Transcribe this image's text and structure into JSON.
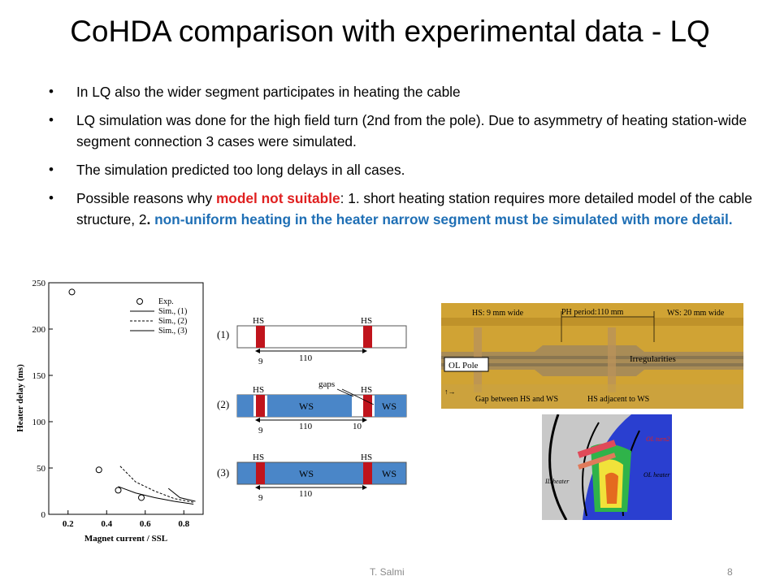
{
  "slide": {
    "title": "CoHDA comparison with experimental data - LQ",
    "bullets": {
      "b1": "In LQ also the wider segment participates in heating the cable",
      "b2": "LQ simulation was done for the high field turn (2nd from the pole). Due to asymmetry of heating station-wide segment connection 3 cases were simulated.",
      "b3": "The simulation predicted too long delays in all cases.",
      "b4_pre": "Possible reasons why ",
      "b4_red": "model not suitable",
      "b4_mid": ": 1. short heating station requires more detailed model of the cable structure, 2",
      "b4_dot": ". ",
      "b4_blue": "non-uniform heating in the heater narrow segment must be simulated with more detail."
    },
    "footer": {
      "author": "T. Salmi",
      "page": "8"
    }
  },
  "plot": {
    "ylabel": "Heater delay (ms)",
    "xlabel": "Magnet current / SSL",
    "yticks": [
      "0",
      "50",
      "100",
      "150",
      "200",
      "250"
    ],
    "xticks": [
      "0.2",
      "0.4",
      "0.6",
      "0.8"
    ],
    "legend": [
      "Exp.",
      "Sim., (1)",
      "Sim., (2)",
      "Sim., (3)"
    ]
  },
  "chart_data": {
    "type": "scatter",
    "xlabel": "Magnet current / SSL",
    "ylabel": "Heater delay (ms)",
    "xlim": [
      0.1,
      0.9
    ],
    "ylim": [
      0,
      250
    ],
    "series": [
      {
        "name": "Exp.",
        "style": "circles",
        "x": [
          0.22,
          0.36,
          0.46,
          0.58
        ],
        "y": [
          240,
          48,
          26,
          18
        ]
      },
      {
        "name": "Sim., (1)",
        "style": "solid",
        "x": [
          0.46,
          0.55,
          0.65,
          0.75,
          0.85
        ],
        "y": [
          30,
          23,
          18,
          14,
          11
        ]
      },
      {
        "name": "Sim., (2)",
        "style": "dashed",
        "x": [
          0.47,
          0.55,
          0.65,
          0.75,
          0.85
        ],
        "y": [
          52,
          35,
          25,
          17,
          13
        ]
      },
      {
        "name": "Sim., (3)",
        "style": "solid",
        "x": [
          0.72,
          0.78,
          0.86
        ],
        "y": [
          28,
          18,
          14
        ]
      }
    ]
  },
  "schematics": {
    "hs": "HS",
    "ws": "WS",
    "gaps": "gaps",
    "dims": {
      "period": "110",
      "hs_gap": "9",
      "ws_gap": "10"
    },
    "cases": [
      "(1)",
      "(2)",
      "(3)"
    ],
    "colors": {
      "hs": "#c0141c",
      "ws": "#4a86c8"
    }
  },
  "photo": {
    "hs_width": "HS: 9 mm wide",
    "period": "PH period:110  mm",
    "ws_width": "WS: 20 mm wide",
    "ol_pole": "OL Pole",
    "irregularities": "Irregularities",
    "gap_label": "Gap between HS and WS",
    "adjacent": "HS adjacent to WS"
  },
  "sim_image": {
    "ol_turn2": "OL turn2",
    "ol_heater": "OL heater",
    "il_heater": "IL heater"
  }
}
